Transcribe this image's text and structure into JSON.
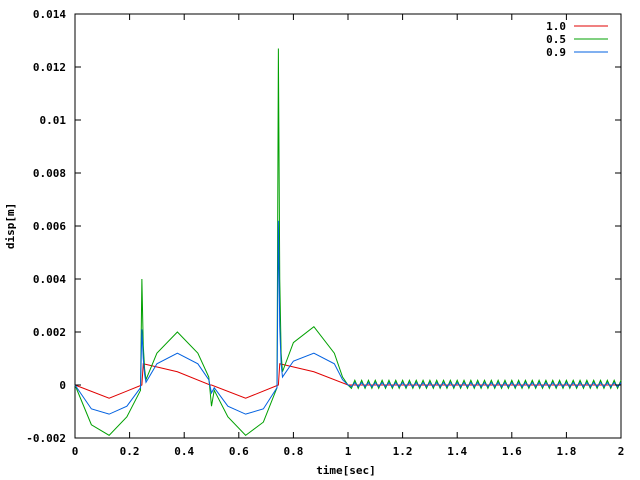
{
  "chart_data": {
    "type": "line",
    "title": "",
    "xlabel": "time[sec]",
    "ylabel": "disp[m]",
    "xlim": [
      0,
      2
    ],
    "ylim": [
      -0.002,
      0.014
    ],
    "x_ticks": [
      "0",
      "0.2",
      "0.4",
      "0.6",
      "0.8",
      "1",
      "1.2",
      "1.4",
      "1.6",
      "1.8",
      "2"
    ],
    "y_ticks": [
      "-0.002",
      "0",
      "0.002",
      "0.004",
      "0.006",
      "0.008",
      "0.01",
      "0.012",
      "0.014"
    ],
    "x_tick_values": [
      0,
      0.2,
      0.4,
      0.6,
      0.8,
      1.0,
      1.2,
      1.4,
      1.6,
      1.8,
      2.0
    ],
    "y_tick_values": [
      -0.002,
      0,
      0.002,
      0.004,
      0.006,
      0.008,
      0.01,
      0.012,
      0.014
    ],
    "grid": false,
    "legend_position": "top-right",
    "series": [
      {
        "name": "1.0",
        "color": "#e00000",
        "x": [
          0,
          0.125,
          0.245,
          0.25,
          0.375,
          0.495,
          0.5,
          0.625,
          0.745,
          0.75,
          0.875,
          1.0,
          1.2,
          1.4,
          1.6,
          1.8,
          2.0
        ],
        "y": [
          0,
          -0.0005,
          0,
          0.0008,
          0.0005,
          0,
          0,
          -0.0005,
          0,
          0.0008,
          0.0005,
          0,
          0,
          0,
          0,
          0,
          0
        ]
      },
      {
        "name": "0.5",
        "color": "#00a000",
        "x": [
          0,
          0.06,
          0.125,
          0.19,
          0.24,
          0.245,
          0.25,
          0.255,
          0.26,
          0.3,
          0.375,
          0.45,
          0.49,
          0.5,
          0.51,
          0.56,
          0.625,
          0.69,
          0.74,
          0.745,
          0.75,
          0.755,
          0.76,
          0.8,
          0.875,
          0.95,
          0.98,
          1.0,
          1.2,
          1.4,
          1.6,
          1.8,
          2.0
        ],
        "y": [
          0,
          -0.0015,
          -0.0019,
          -0.0012,
          -0.0002,
          0.004,
          0.0015,
          0.0006,
          0.0002,
          0.0012,
          0.002,
          0.0012,
          0.0003,
          -0.0008,
          -0.0002,
          -0.0012,
          -0.0019,
          -0.0014,
          -0.0001,
          0.0127,
          0.004,
          0.0012,
          0.0005,
          0.0016,
          0.0022,
          0.0012,
          0.0003,
          0,
          0,
          0,
          0,
          0,
          0
        ]
      },
      {
        "name": "0.9",
        "color": "#0060e0",
        "x": [
          0,
          0.06,
          0.125,
          0.19,
          0.24,
          0.245,
          0.25,
          0.255,
          0.26,
          0.3,
          0.375,
          0.45,
          0.49,
          0.5,
          0.51,
          0.56,
          0.625,
          0.69,
          0.74,
          0.745,
          0.75,
          0.755,
          0.76,
          0.8,
          0.875,
          0.95,
          0.98,
          1.0,
          1.2,
          1.4,
          1.6,
          1.8,
          2.0
        ],
        "y": [
          0,
          -0.0009,
          -0.0011,
          -0.0008,
          -0.0001,
          0.0021,
          0.001,
          0.0004,
          0.0001,
          0.0008,
          0.0012,
          0.0008,
          0.0002,
          -0.0003,
          -0.0001,
          -0.0008,
          -0.0011,
          -0.0009,
          -0.0001,
          0.0062,
          0.0022,
          0.0008,
          0.0003,
          0.0009,
          0.0012,
          0.0008,
          0.0002,
          0,
          0,
          0,
          0,
          0,
          0
        ]
      }
    ]
  }
}
